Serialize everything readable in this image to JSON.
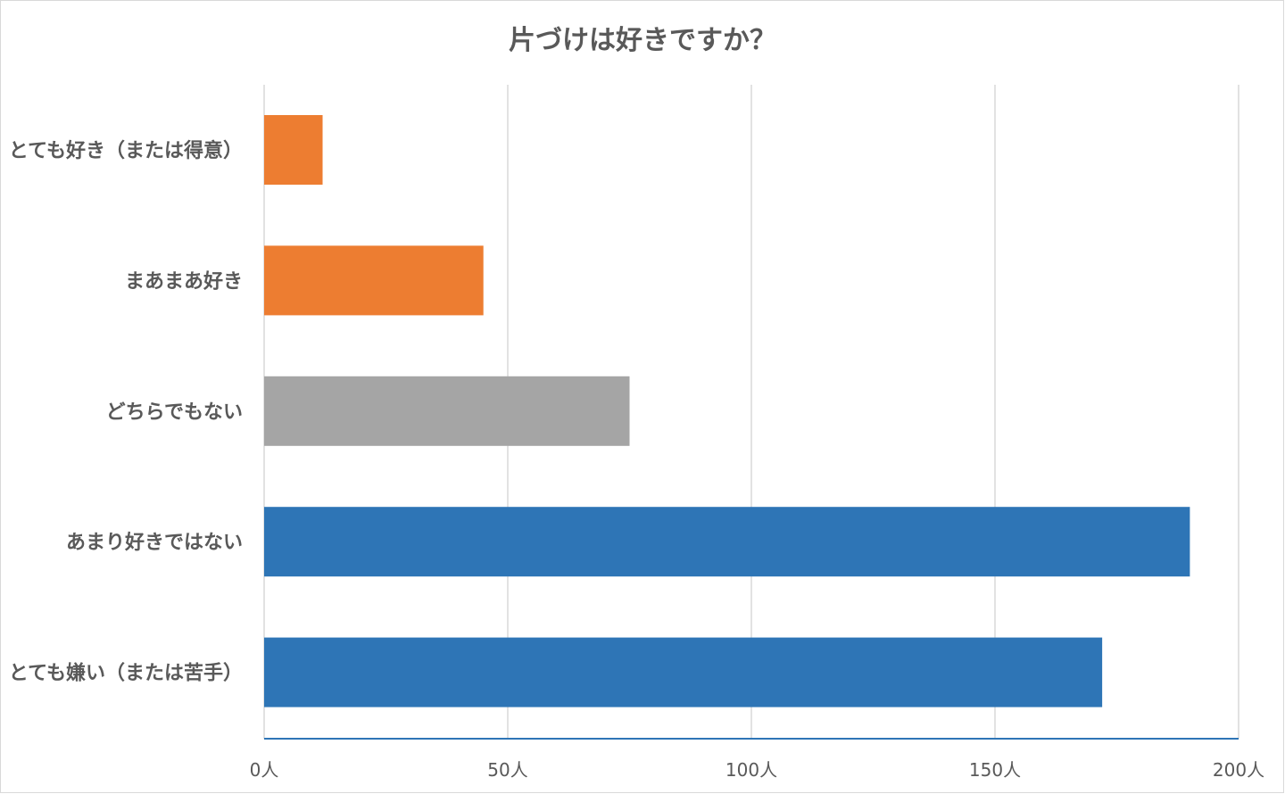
{
  "chart_data": {
    "type": "bar",
    "orientation": "horizontal",
    "title": "片づけは好きですか？",
    "categories": [
      "とても好き（または得意）",
      "まあまあ好き",
      "どちらでもない",
      "あまり好きではない",
      "とても嫌い（または苦手）"
    ],
    "values": [
      12,
      45,
      75,
      190,
      172
    ],
    "bar_colors": [
      "#ED7D31",
      "#ED7D31",
      "#A5A5A5",
      "#2E75B6",
      "#2E75B6"
    ],
    "xlim": [
      0,
      200
    ],
    "xticks": [
      0,
      50,
      100,
      150,
      200
    ],
    "xtick_labels": [
      "0人",
      "50人",
      "100人",
      "150人",
      "200人"
    ],
    "grid": true,
    "legend": "none"
  },
  "colors": {
    "text": "#595959",
    "grid": "#D9D9D9",
    "axis": "#2E75B6"
  }
}
